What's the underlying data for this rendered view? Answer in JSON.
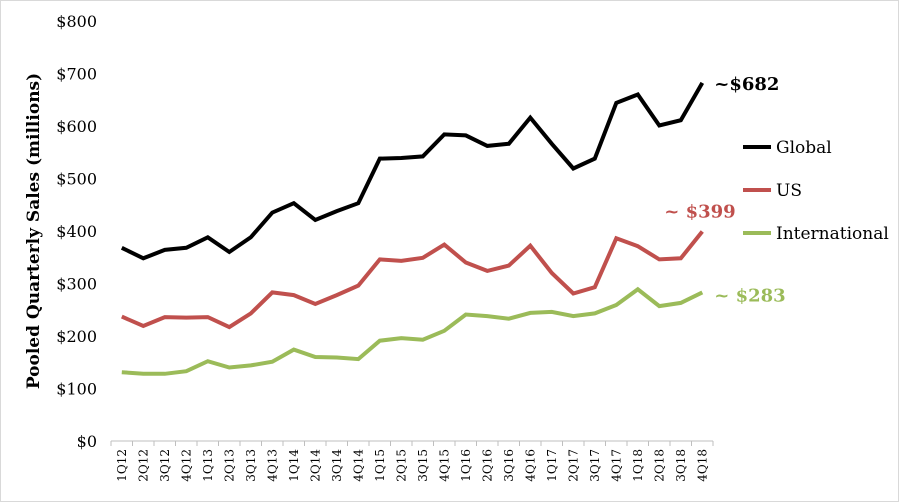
{
  "chart_data": {
    "type": "line",
    "title": "",
    "xlabel": "",
    "ylabel": "Pooled Quarterly Sales (millions)",
    "ylim": [
      0,
      800
    ],
    "yticks": [
      "$0",
      "$100",
      "$200",
      "$300",
      "$400",
      "$500",
      "$600",
      "$700",
      "$800"
    ],
    "ytick_values": [
      0,
      100,
      200,
      300,
      400,
      500,
      600,
      700,
      800
    ],
    "grid": false,
    "legend_position": "right",
    "categories": [
      "1Q12",
      "2Q12",
      "3Q12",
      "4Q12",
      "1Q13",
      "2Q13",
      "3Q13",
      "4Q13",
      "1Q14",
      "2Q14",
      "3Q14",
      "4Q14",
      "1Q15",
      "2Q15",
      "3Q15",
      "4Q15",
      "1Q16",
      "2Q16",
      "3Q16",
      "4Q16",
      "1Q17",
      "2Q17",
      "3Q17",
      "4Q17",
      "1Q18",
      "2Q18",
      "3Q18",
      "4Q18"
    ],
    "series": [
      {
        "name": "Global",
        "color": "#000000",
        "values": [
          368,
          348,
          364,
          368,
          388,
          360,
          388,
          435,
          453,
          421,
          438,
          453,
          538,
          539,
          542,
          584,
          582,
          562,
          566,
          616,
          566,
          519,
          538,
          644,
          660,
          601,
          611,
          682
        ]
      },
      {
        "name": "US",
        "color": "#c0504d",
        "values": [
          237,
          219,
          236,
          235,
          236,
          217,
          243,
          283,
          278,
          261,
          278,
          296,
          346,
          343,
          349,
          374,
          340,
          324,
          334,
          372,
          320,
          281,
          293,
          386,
          371,
          346,
          348,
          399
        ]
      },
      {
        "name": "International",
        "color": "#9bbb59",
        "values": [
          131,
          128,
          128,
          133,
          152,
          140,
          144,
          151,
          174,
          160,
          159,
          156,
          191,
          196,
          193,
          210,
          241,
          238,
          233,
          244,
          246,
          238,
          243,
          259,
          289,
          257,
          263,
          283
        ]
      }
    ],
    "annotations": [
      {
        "series": "Global",
        "text": "~$682",
        "color": "#000000"
      },
      {
        "series": "US",
        "text": "~ $399",
        "color": "#c0504d"
      },
      {
        "series": "International",
        "text": "~ $283",
        "color": "#9bbb59"
      }
    ]
  }
}
